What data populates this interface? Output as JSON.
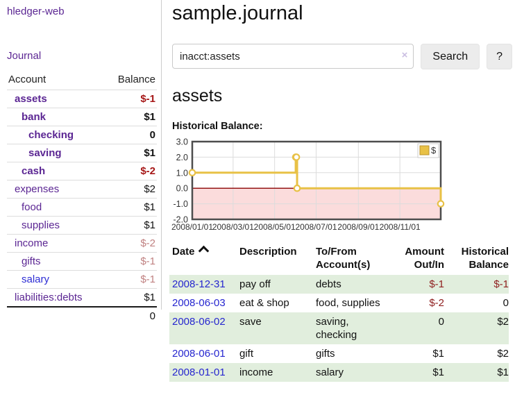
{
  "app": {
    "brand": "hledger-web"
  },
  "header": {
    "title": "sample.journal"
  },
  "search": {
    "value": "inacct:assets",
    "clear_icon": "×",
    "button_label": "Search",
    "help_label": "?"
  },
  "sidebar": {
    "journal_link": "Journal",
    "accounts_table": {
      "headers": {
        "account": "Account",
        "balance": "Balance"
      },
      "rows": [
        {
          "name": "assets",
          "balance": "$-1",
          "level": 0,
          "bold": true,
          "negative": "strong"
        },
        {
          "name": "bank",
          "balance": "$1",
          "level": 1,
          "bold": true
        },
        {
          "name": "checking",
          "balance": "0",
          "level": 2,
          "bold": true
        },
        {
          "name": "saving",
          "balance": "$1",
          "level": 2,
          "bold": true
        },
        {
          "name": "cash",
          "balance": "$-2",
          "level": 1,
          "bold": true,
          "negative": "strong"
        },
        {
          "name": "expenses",
          "balance": "$2",
          "level": 0
        },
        {
          "name": "food",
          "balance": "$1",
          "level": 1
        },
        {
          "name": "supplies",
          "balance": "$1",
          "level": 1
        },
        {
          "name": "income",
          "balance": "$-2",
          "level": 0,
          "negative": "soft"
        },
        {
          "name": "gifts",
          "balance": "$-1",
          "level": 1,
          "negative": "soft"
        },
        {
          "name": "salary",
          "balance": "$-1",
          "level": 1,
          "negative": "soft",
          "link_color": "blue"
        },
        {
          "name": "liabilities:debts",
          "balance": "$1",
          "level": 0
        }
      ],
      "total": "0"
    }
  },
  "account_page": {
    "heading": "assets",
    "chart_label": "Historical Balance:"
  },
  "chart_data": {
    "type": "line",
    "step": true,
    "title": "Historical Balance:",
    "series": [
      {
        "name": "$",
        "color": "#e8c146",
        "points": [
          [
            "2008-01-01",
            1
          ],
          [
            "2008-06-01",
            2
          ],
          [
            "2008-06-02",
            2
          ],
          [
            "2008-06-03",
            0
          ],
          [
            "2008-12-31",
            -1
          ]
        ]
      }
    ],
    "x_range": [
      "2008-01-01",
      "2008-12-31"
    ],
    "ylim": [
      -2,
      3
    ],
    "y_ticks": [
      3.0,
      2.0,
      1.0,
      0.0,
      -1.0,
      -2.0
    ],
    "x_ticks": [
      "2008/01/01",
      "2008/03/01",
      "2008/05/01",
      "2008/07/01",
      "2008/09/01",
      "2008/11/01"
    ],
    "legend": {
      "label": "$",
      "position": "top-right"
    },
    "grid": true,
    "colors": {
      "negative_region": "#fbdcdc",
      "zero_line": "#8b0000",
      "grid": "#dcdcdc",
      "border": "#4d4d4d",
      "legend_swatch_border": "#ba922e",
      "tick_text": "#333333"
    }
  },
  "register_table": {
    "sort": "ascending",
    "headers": [
      {
        "line1": "Date",
        "line2": ""
      },
      {
        "line1": "Description",
        "line2": ""
      },
      {
        "line1": "To/From",
        "line2": "Account(s)"
      },
      {
        "line1": "Amount",
        "line2": "Out/In"
      },
      {
        "line1": "Historical",
        "line2": "Balance"
      }
    ],
    "rows": [
      {
        "date": "2008-12-31",
        "description": "pay off",
        "accounts": "debts",
        "amount": "$-1",
        "balance": "$-1"
      },
      {
        "date": "2008-06-03",
        "description": "eat & shop",
        "accounts": "food, supplies",
        "amount": "$-2",
        "balance": "0"
      },
      {
        "date": "2008-06-02",
        "description": "save",
        "accounts": "saving, checking",
        "amount": "0",
        "balance": "$2"
      },
      {
        "date": "2008-06-01",
        "description": "gift",
        "accounts": "gifts",
        "amount": "$1",
        "balance": "$2"
      },
      {
        "date": "2008-01-01",
        "description": "income",
        "accounts": "salary",
        "amount": "$1",
        "balance": "$1"
      }
    ]
  },
  "colors": {
    "link_purple": "#5b2693",
    "link_blue": "#2d2dd4",
    "negative_strong": "#a61717",
    "negative_soft": "#c08181",
    "table_negative": "#8f2020",
    "row_stripe_green": "#e1eedd"
  }
}
